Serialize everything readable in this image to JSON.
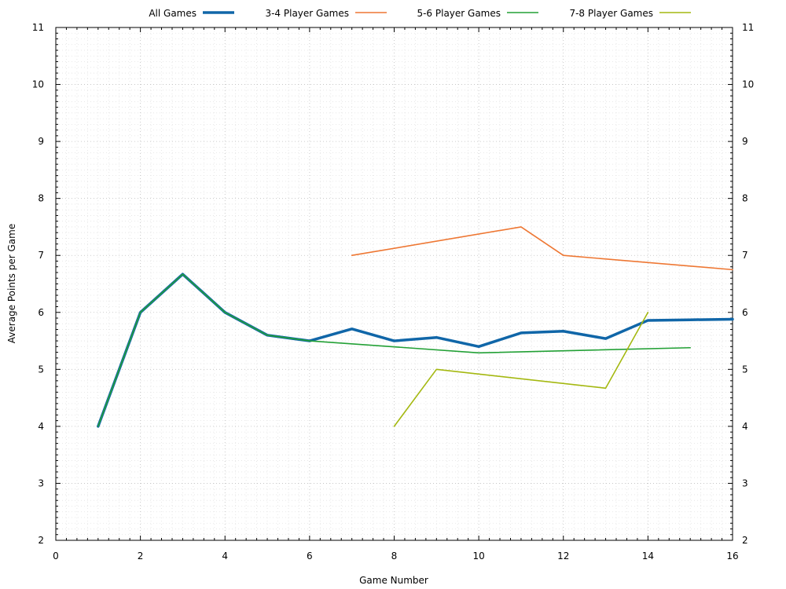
{
  "chart_data": {
    "type": "line",
    "xlabel": "Game Number",
    "ylabel": "Average Points per Game",
    "xlim": [
      0,
      16
    ],
    "ylim": [
      2,
      11
    ],
    "x_ticks": [
      0,
      2,
      4,
      6,
      8,
      10,
      12,
      14,
      16
    ],
    "y_ticks": [
      2,
      3,
      4,
      5,
      6,
      7,
      8,
      9,
      10,
      11
    ],
    "x_minor_step": 0.25,
    "y_minor_step": 0.1,
    "grid": true,
    "mirror_y_axis": true,
    "legend_position": "top",
    "series": [
      {
        "name": "All Games",
        "color": "#1066a8",
        "width": 3.5,
        "x": [
          1,
          2,
          3,
          4,
          5,
          6,
          7,
          8,
          9,
          10,
          11,
          12,
          13,
          14,
          15,
          16
        ],
        "y": [
          4,
          6,
          6.67,
          6,
          5.6,
          5.5,
          5.71,
          5.5,
          5.56,
          5.4,
          5.64,
          5.67,
          5.54,
          5.86,
          5.87,
          5.88
        ]
      },
      {
        "name": "3-4 Player Games",
        "color": "#ee7733",
        "width": 1.6,
        "x": [
          7,
          11,
          12,
          16
        ],
        "y": [
          7,
          7.5,
          7,
          6.75
        ]
      },
      {
        "name": "5-6 Player Games",
        "color": "#22a035",
        "width": 1.6,
        "x": [
          1,
          2,
          3,
          4,
          5,
          6,
          10,
          15
        ],
        "y": [
          4,
          6,
          6.67,
          6,
          5.6,
          5.5,
          5.29,
          5.38
        ]
      },
      {
        "name": "7-8 Player Games",
        "color": "#a4b810",
        "width": 1.6,
        "x": [
          8,
          9,
          13,
          14
        ],
        "y": [
          4,
          5,
          4.67,
          6
        ]
      }
    ]
  }
}
